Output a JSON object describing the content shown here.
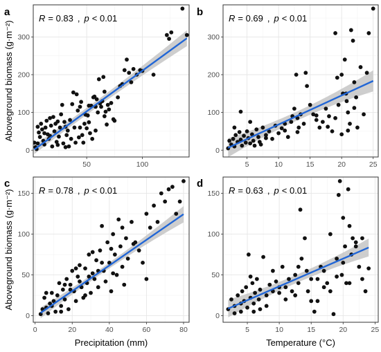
{
  "figure": {
    "x_titles": {
      "bottom_left": "Precipitation (mm)",
      "bottom_right": "Temperature (°C)"
    },
    "y_title": "Aboveground biomass (g·m⁻²)"
  },
  "chart_data": [
    {
      "panel": "a",
      "type": "scatter",
      "xlabel": "",
      "ylabel": "Aboveground biomass (g·m⁻²)",
      "stats": {
        "r_label": "R",
        "r_value": "= 0.83",
        "sep": ",",
        "p_label": "p",
        "p_value": "< 0.01"
      },
      "xlim": [
        2,
        142
      ],
      "ylim": [
        -18,
        385
      ],
      "xticks": [
        50,
        100
      ],
      "yticks": [
        0,
        100,
        200,
        300
      ],
      "fit": {
        "slope": 2.15,
        "intercept": -4.5,
        "ci_base": 9,
        "ci_scale": 12
      },
      "points": [
        [
          4,
          8
        ],
        [
          5,
          3
        ],
        [
          6,
          18
        ],
        [
          7,
          47
        ],
        [
          8,
          35
        ],
        [
          9,
          70
        ],
        [
          10,
          55
        ],
        [
          11,
          25
        ],
        [
          12,
          45
        ],
        [
          13,
          60
        ],
        [
          14,
          78
        ],
        [
          15,
          42
        ],
        [
          16,
          30
        ],
        [
          17,
          85
        ],
        [
          18,
          65
        ],
        [
          19,
          10
        ],
        [
          20,
          88
        ],
        [
          21,
          50
        ],
        [
          22,
          70
        ],
        [
          23,
          22
        ],
        [
          24,
          14
        ],
        [
          25,
          36
        ],
        [
          26,
          60
        ],
        [
          27,
          95
        ],
        [
          28,
          120
        ],
        [
          29,
          18
        ],
        [
          30,
          75
        ],
        [
          31,
          8
        ],
        [
          32,
          40
        ],
        [
          33,
          52
        ],
        [
          34,
          10
        ],
        [
          35,
          80
        ],
        [
          36,
          30
        ],
        [
          37,
          122
        ],
        [
          38,
          153
        ],
        [
          39,
          60
        ],
        [
          40,
          20
        ],
        [
          41,
          148
        ],
        [
          42,
          105
        ],
        [
          43,
          34
        ],
        [
          44,
          60
        ],
        [
          45,
          128
        ],
        [
          46,
          40
        ],
        [
          47,
          20
        ],
        [
          48,
          70
        ],
        [
          49,
          94
        ],
        [
          50,
          58
        ],
        [
          51,
          92
        ],
        [
          52,
          74
        ],
        [
          53,
          45
        ],
        [
          54,
          118
        ],
        [
          55,
          30
        ],
        [
          56,
          140
        ],
        [
          57,
          142
        ],
        [
          58,
          115
        ],
        [
          59,
          135
        ],
        [
          60,
          100
        ],
        [
          61,
          188
        ],
        [
          62,
          124
        ],
        [
          63,
          115
        ],
        [
          64,
          130
        ],
        [
          65,
          194
        ],
        [
          66,
          90
        ],
        [
          67,
          102
        ],
        [
          68,
          68
        ],
        [
          69,
          120
        ],
        [
          70,
          108
        ],
        [
          72,
          125
        ],
        [
          74,
          82
        ],
        [
          75,
          78
        ],
        [
          78,
          140
        ],
        [
          80,
          170
        ],
        [
          82,
          175
        ],
        [
          84,
          212
        ],
        [
          86,
          240
        ],
        [
          88,
          205
        ],
        [
          90,
          180
        ],
        [
          92,
          215
        ],
        [
          95,
          200
        ],
        [
          98,
          212
        ],
        [
          100,
          210
        ],
        [
          110,
          200
        ],
        [
          122,
          305
        ],
        [
          124,
          295
        ],
        [
          126,
          312
        ],
        [
          136,
          375
        ],
        [
          140,
          305
        ],
        [
          3,
          20
        ],
        [
          6,
          62
        ],
        [
          12,
          15
        ],
        [
          17,
          38
        ],
        [
          24,
          76
        ],
        [
          31,
          62
        ],
        [
          44,
          115
        ],
        [
          52,
          118
        ],
        [
          58,
          52
        ],
        [
          66,
          155
        ]
      ]
    },
    {
      "panel": "b",
      "type": "scatter",
      "xlabel": "",
      "ylabel": "",
      "stats": {
        "r_label": "R",
        "r_value": "= 0.69",
        "sep": ",",
        "p_label": "p",
        "p_value": "< 0.01"
      },
      "xlim": [
        1.2,
        25.8
      ],
      "ylim": [
        -18,
        385
      ],
      "xticks": [
        5,
        10,
        15,
        20,
        25
      ],
      "yticks": [
        0,
        100,
        200,
        300
      ],
      "fit": {
        "slope": 7.7,
        "intercept": -9,
        "ci_base": 12,
        "ci_scale": 16
      },
      "points": [
        [
          2,
          5
        ],
        [
          2.5,
          15
        ],
        [
          2.8,
          30
        ],
        [
          3,
          10
        ],
        [
          3.2,
          40
        ],
        [
          3.5,
          22
        ],
        [
          3.8,
          48
        ],
        [
          4,
          28
        ],
        [
          4.2,
          12
        ],
        [
          4.5,
          38
        ],
        [
          4.8,
          20
        ],
        [
          5,
          50
        ],
        [
          5.2,
          32
        ],
        [
          5.5,
          18
        ],
        [
          5.8,
          42
        ],
        [
          6,
          25
        ],
        [
          6.2,
          12
        ],
        [
          6.5,
          55
        ],
        [
          6.8,
          35
        ],
        [
          7,
          22
        ],
        [
          7.2,
          15
        ],
        [
          7.5,
          60
        ],
        [
          8,
          40
        ],
        [
          8.5,
          50
        ],
        [
          9,
          30
        ],
        [
          9.5,
          65
        ],
        [
          10,
          45
        ],
        [
          10.5,
          58
        ],
        [
          11,
          70
        ],
        [
          11.5,
          35
        ],
        [
          12,
          75
        ],
        [
          12.2,
          90
        ],
        [
          12.5,
          110
        ],
        [
          12.8,
          200
        ],
        [
          13,
          85
        ],
        [
          13.2,
          60
        ],
        [
          13.5,
          95
        ],
        [
          14,
          70
        ],
        [
          14.3,
          205
        ],
        [
          14.5,
          170
        ],
        [
          15,
          120
        ],
        [
          15.5,
          95
        ],
        [
          16,
          80
        ],
        [
          16.5,
          60
        ],
        [
          17,
          75
        ],
        [
          18,
          90
        ],
        [
          18.5,
          50
        ],
        [
          19,
          310
        ],
        [
          19.5,
          120
        ],
        [
          20,
          200
        ],
        [
          20.2,
          150
        ],
        [
          20.5,
          240
        ],
        [
          20.8,
          130
        ],
        [
          21,
          100
        ],
        [
          21.3,
          70
        ],
        [
          21.5,
          318
        ],
        [
          21.8,
          290
        ],
        [
          22,
          180
        ],
        [
          22.3,
          140
        ],
        [
          22.5,
          60
        ],
        [
          23,
          220
        ],
        [
          23.5,
          95
        ],
        [
          24,
          205
        ],
        [
          24.3,
          310
        ],
        [
          25,
          375
        ],
        [
          3,
          60
        ],
        [
          4,
          102
        ],
        [
          2.2,
          25
        ],
        [
          5.5,
          75
        ],
        [
          8,
          32
        ],
        [
          11,
          52
        ],
        [
          13,
          48
        ],
        [
          16,
          92
        ],
        [
          17.5,
          110
        ],
        [
          19,
          85
        ],
        [
          20,
          42
        ],
        [
          21,
          52
        ],
        [
          22,
          112
        ],
        [
          17.8,
          62
        ],
        [
          19.3,
          192
        ],
        [
          20.7,
          150
        ]
      ]
    },
    {
      "panel": "c",
      "type": "scatter",
      "xlabel": "Precipitation (mm)",
      "ylabel": "Aboveground biomass (g·m⁻²)",
      "stats": {
        "r_label": "R",
        "r_value": "= 0.78",
        "sep": ",",
        "p_label": "p",
        "p_value": "< 0.01"
      },
      "xlim": [
        -1,
        83
      ],
      "ylim": [
        -8,
        170
      ],
      "xticks": [
        0,
        20,
        40,
        60,
        80
      ],
      "yticks": [
        0,
        50,
        100,
        150
      ],
      "fit": {
        "slope": 1.57,
        "intercept": -1.2,
        "ci_base": 3.5,
        "ci_scale": 6.5
      },
      "points": [
        [
          3,
          2
        ],
        [
          4,
          8
        ],
        [
          5,
          22
        ],
        [
          6,
          10
        ],
        [
          7,
          3
        ],
        [
          8,
          15
        ],
        [
          9,
          28
        ],
        [
          10,
          18
        ],
        [
          11,
          5
        ],
        [
          12,
          25
        ],
        [
          13,
          40
        ],
        [
          14,
          12
        ],
        [
          15,
          32
        ],
        [
          16,
          20
        ],
        [
          17,
          45
        ],
        [
          18,
          8
        ],
        [
          19,
          38
        ],
        [
          20,
          55
        ],
        [
          21,
          30
        ],
        [
          22,
          18
        ],
        [
          23,
          48
        ],
        [
          24,
          62
        ],
        [
          25,
          35
        ],
        [
          26,
          22
        ],
        [
          27,
          58
        ],
        [
          28,
          40
        ],
        [
          29,
          75
        ],
        [
          30,
          28
        ],
        [
          31,
          52
        ],
        [
          32,
          45
        ],
        [
          33,
          68
        ],
        [
          34,
          35
        ],
        [
          35,
          80
        ],
        [
          36,
          110
        ],
        [
          37,
          55
        ],
        [
          38,
          42
        ],
        [
          39,
          90
        ],
        [
          40,
          65
        ],
        [
          41,
          30
        ],
        [
          42,
          100
        ],
        [
          43,
          75
        ],
        [
          44,
          50
        ],
        [
          45,
          118
        ],
        [
          46,
          85
        ],
        [
          47,
          60
        ],
        [
          48,
          38
        ],
        [
          49,
          95
        ],
        [
          50,
          70
        ],
        [
          52,
          115
        ],
        [
          54,
          90
        ],
        [
          56,
          80
        ],
        [
          58,
          65
        ],
        [
          60,
          125
        ],
        [
          62,
          108
        ],
        [
          64,
          135
        ],
        [
          66,
          115
        ],
        [
          68,
          150
        ],
        [
          70,
          140
        ],
        [
          72,
          155
        ],
        [
          74,
          158
        ],
        [
          76,
          125
        ],
        [
          78,
          140
        ],
        [
          80,
          165
        ],
        [
          6,
          28
        ],
        [
          14,
          5
        ],
        [
          19,
          32
        ],
        [
          24,
          42
        ],
        [
          27,
          25
        ],
        [
          31,
          78
        ],
        [
          36,
          65
        ],
        [
          42,
          52
        ],
        [
          47,
          108
        ],
        [
          53,
          88
        ],
        [
          60,
          45
        ],
        [
          9,
          12
        ],
        [
          16,
          38
        ],
        [
          22,
          58
        ],
        [
          29,
          48
        ],
        [
          34,
          55
        ],
        [
          41,
          82
        ]
      ]
    },
    {
      "panel": "d",
      "type": "scatter",
      "xlabel": "Temperature (°C)",
      "ylabel": "",
      "stats": {
        "r_label": "R",
        "r_value": "= 0.63",
        "sep": ",",
        "p_label": "p",
        "p_value": "< 0.01"
      },
      "xlim": [
        1.2,
        25.5
      ],
      "ylim": [
        -8,
        170
      ],
      "xticks": [
        5,
        10,
        15,
        20,
        25
      ],
      "yticks": [
        0,
        50,
        100,
        150
      ],
      "fit": {
        "slope": 3.4,
        "intercept": 2,
        "ci_base": 5,
        "ci_scale": 6
      },
      "points": [
        [
          2,
          8
        ],
        [
          2.5,
          20
        ],
        [
          3,
          12
        ],
        [
          3.5,
          25
        ],
        [
          4,
          5
        ],
        [
          4.2,
          30
        ],
        [
          4.5,
          18
        ],
        [
          4.8,
          35
        ],
        [
          5,
          10
        ],
        [
          5.2,
          75
        ],
        [
          5.5,
          22
        ],
        [
          5.8,
          40
        ],
        [
          6,
          15
        ],
        [
          6.2,
          28
        ],
        [
          6.5,
          45
        ],
        [
          6.8,
          20
        ],
        [
          7,
          32
        ],
        [
          7.5,
          72
        ],
        [
          8,
          25
        ],
        [
          8.5,
          38
        ],
        [
          9,
          30
        ],
        [
          9.5,
          42
        ],
        [
          10,
          28
        ],
        [
          10.5,
          60
        ],
        [
          11,
          35
        ],
        [
          11.5,
          45
        ],
        [
          12,
          30
        ],
        [
          12.5,
          50
        ],
        [
          13,
          40
        ],
        [
          13.3,
          130
        ],
        [
          13.5,
          70
        ],
        [
          14,
          95
        ],
        [
          14.3,
          55
        ],
        [
          14.5,
          30
        ],
        [
          15,
          45
        ],
        [
          15.5,
          5
        ],
        [
          16,
          18
        ],
        [
          16.5,
          60
        ],
        [
          17,
          55
        ],
        [
          17.5,
          40
        ],
        [
          18,
          100
        ],
        [
          18.5,
          2
        ],
        [
          19,
          70
        ],
        [
          19.3,
          148
        ],
        [
          19.5,
          165
        ],
        [
          19.8,
          50
        ],
        [
          20,
          120
        ],
        [
          20.3,
          85
        ],
        [
          20.5,
          40
        ],
        [
          20.8,
          155
        ],
        [
          21,
          110
        ],
        [
          21.3,
          75
        ],
        [
          21.5,
          95
        ],
        [
          22,
          85
        ],
        [
          22.5,
          60
        ],
        [
          23,
          45
        ],
        [
          23.5,
          30
        ],
        [
          24,
          58
        ],
        [
          3,
          3
        ],
        [
          4,
          15
        ],
        [
          6,
          5
        ],
        [
          8,
          12
        ],
        [
          11,
          20
        ],
        [
          12.5,
          25
        ],
        [
          15,
          18
        ],
        [
          17,
          35
        ],
        [
          19,
          48
        ],
        [
          21,
          40
        ],
        [
          23,
          95
        ],
        [
          9,
          55
        ],
        [
          7,
          8
        ],
        [
          5.5,
          48
        ],
        [
          10,
          35
        ],
        [
          13,
          60
        ],
        [
          16,
          45
        ],
        [
          18,
          30
        ],
        [
          20,
          65
        ],
        [
          22,
          90
        ]
      ]
    }
  ]
}
